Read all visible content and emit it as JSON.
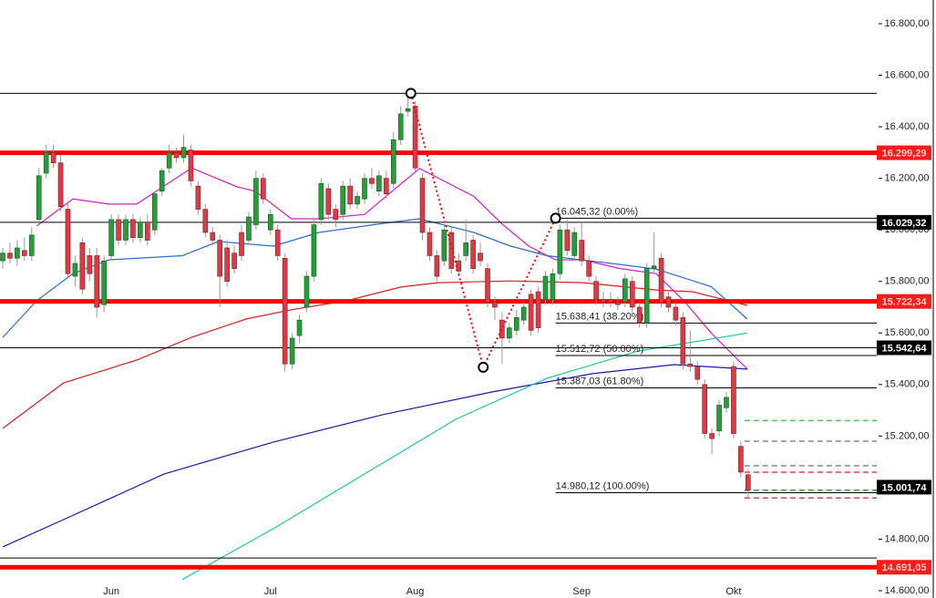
{
  "chart_data": {
    "type": "candlestick",
    "categories": [
      null,
      null,
      null,
      null,
      null,
      null,
      null,
      null,
      null,
      null,
      null,
      null,
      null,
      null,
      null,
      "Jun",
      null,
      null,
      null,
      null,
      null,
      null,
      null,
      null,
      null,
      null,
      null,
      null,
      null,
      null,
      null,
      null,
      null,
      null,
      null,
      null,
      null,
      "Jul",
      null,
      null,
      null,
      null,
      null,
      null,
      null,
      null,
      null,
      null,
      null,
      null,
      null,
      null,
      null,
      null,
      null,
      null,
      null,
      "Aug",
      null,
      null,
      null,
      null,
      null,
      null,
      null,
      null,
      null,
      null,
      null,
      null,
      null,
      null,
      null,
      null,
      null,
      null,
      null,
      null,
      null,
      null,
      "Sep",
      null,
      null,
      null,
      null,
      null,
      null,
      null,
      null,
      null,
      null,
      null,
      null,
      null,
      null,
      null,
      null,
      null,
      null,
      null,
      null,
      "Okt",
      null,
      null
    ],
    "ohlc": [
      [
        15880,
        15930,
        15850,
        15910
      ],
      [
        15910,
        15950,
        15870,
        15890
      ],
      [
        15890,
        15960,
        15860,
        15930
      ],
      [
        15920,
        15970,
        15880,
        15900
      ],
      [
        15900,
        16010,
        15880,
        15980
      ],
      [
        16040,
        16240,
        16020,
        16210
      ],
      [
        16220,
        16330,
        16200,
        16300
      ],
      [
        16300,
        16330,
        16240,
        16260
      ],
      [
        16260,
        16290,
        16070,
        16090
      ],
      [
        16080,
        16100,
        15810,
        15830
      ],
      [
        15820,
        15900,
        15780,
        15870
      ],
      [
        15950,
        15970,
        15750,
        15770
      ],
      [
        15900,
        15930,
        15800,
        15830
      ],
      [
        15900,
        15930,
        15660,
        15700
      ],
      [
        15710,
        15900,
        15680,
        15880
      ],
      [
        15900,
        16060,
        15880,
        16040
      ],
      [
        16040,
        16060,
        15940,
        15960
      ],
      [
        15960,
        16060,
        15940,
        16040
      ],
      [
        16040,
        16060,
        15950,
        15970
      ],
      [
        15970,
        16050,
        15950,
        16030
      ],
      [
        16030,
        16060,
        15940,
        15960
      ],
      [
        16000,
        16150,
        15980,
        16140
      ],
      [
        16150,
        16240,
        16130,
        16230
      ],
      [
        16240,
        16330,
        16220,
        16300
      ],
      [
        16300,
        16320,
        16260,
        16280
      ],
      [
        16280,
        16370,
        16260,
        16320
      ],
      [
        16310,
        16330,
        16170,
        16190
      ],
      [
        16170,
        16190,
        16060,
        16080
      ],
      [
        16080,
        16100,
        15970,
        15990
      ],
      [
        15990,
        16010,
        15940,
        15960
      ],
      [
        15960,
        15980,
        15700,
        15820
      ],
      [
        15930,
        15960,
        15780,
        15800
      ],
      [
        15910,
        15940,
        15830,
        15850
      ],
      [
        15990,
        16020,
        15880,
        15900
      ],
      [
        15960,
        16070,
        15940,
        16050
      ],
      [
        16020,
        16230,
        16000,
        16200
      ],
      [
        16200,
        16220,
        16100,
        16120
      ],
      [
        16000,
        16080,
        15980,
        16060
      ],
      [
        16000,
        16020,
        15880,
        15900
      ],
      [
        15890,
        15910,
        15450,
        15480
      ],
      [
        15480,
        15600,
        15460,
        15580
      ],
      [
        15590,
        15670,
        15560,
        15650
      ],
      [
        15700,
        15840,
        15680,
        15820
      ],
      [
        15820,
        16040,
        15800,
        16020
      ],
      [
        16040,
        16200,
        16020,
        16180
      ],
      [
        16160,
        16180,
        16040,
        16060
      ],
      [
        16080,
        16100,
        16010,
        16040
      ],
      [
        16060,
        16190,
        16040,
        16170
      ],
      [
        16170,
        16200,
        16080,
        16100
      ],
      [
        16100,
        16150,
        16080,
        16130
      ],
      [
        16120,
        16220,
        16100,
        16200
      ],
      [
        16200,
        16240,
        16160,
        16180
      ],
      [
        16150,
        16230,
        16130,
        16210
      ],
      [
        16200,
        16230,
        16120,
        16140
      ],
      [
        16180,
        16380,
        16160,
        16350
      ],
      [
        16350,
        16480,
        16330,
        16450
      ],
      [
        16460,
        16530,
        16440,
        16470
      ],
      [
        16480,
        16500,
        16220,
        16240
      ],
      [
        16200,
        16220,
        15960,
        15990
      ],
      [
        15990,
        16010,
        15880,
        15900
      ],
      [
        15900,
        15920,
        15800,
        15820
      ],
      [
        15880,
        16020,
        15860,
        16000
      ],
      [
        15990,
        16010,
        15830,
        15850
      ],
      [
        15880,
        15910,
        15820,
        15840
      ],
      [
        15900,
        16040,
        15880,
        15950
      ],
      [
        15960,
        15980,
        15830,
        15850
      ],
      [
        15910,
        15950,
        15860,
        15880
      ],
      [
        15850,
        15870,
        15700,
        15720
      ],
      [
        15720,
        15740,
        15650,
        15700
      ],
      [
        15650,
        15680,
        15480,
        15580
      ],
      [
        15580,
        15640,
        15560,
        15620
      ],
      [
        15610,
        15690,
        15590,
        15660
      ],
      [
        15650,
        15720,
        15630,
        15700
      ],
      [
        15750,
        15770,
        15590,
        15610
      ],
      [
        15760,
        15780,
        15600,
        15620
      ],
      [
        15730,
        15840,
        15710,
        15820
      ],
      [
        15730,
        15850,
        15710,
        15830
      ],
      [
        15830,
        16020,
        15810,
        16000
      ],
      [
        16000,
        16040,
        15900,
        15920
      ],
      [
        15900,
        16010,
        15880,
        15990
      ],
      [
        15960,
        16030,
        15860,
        15880
      ],
      [
        15880,
        15900,
        15800,
        15820
      ],
      [
        15800,
        15820,
        15710,
        15730
      ],
      [
        15730,
        15760,
        15700,
        15720
      ],
      [
        15730,
        15760,
        15700,
        15720
      ],
      [
        15720,
        15740,
        15690,
        15710
      ],
      [
        15720,
        15830,
        15700,
        15810
      ],
      [
        15800,
        15820,
        15680,
        15700
      ],
      [
        15700,
        15720,
        15620,
        15640
      ],
      [
        15640,
        15870,
        15620,
        15850
      ],
      [
        15850,
        15990,
        15830,
        15860
      ],
      [
        15890,
        15910,
        15700,
        15720
      ],
      [
        15740,
        15760,
        15680,
        15700
      ],
      [
        15700,
        15720,
        15630,
        15650
      ],
      [
        15660,
        15680,
        15460,
        15480
      ],
      [
        15480,
        15610,
        15450,
        15470
      ],
      [
        15470,
        15490,
        15400,
        15420
      ],
      [
        15400,
        15420,
        15190,
        15210
      ],
      [
        15210,
        15230,
        15130,
        15190
      ],
      [
        15220,
        15340,
        15200,
        15320
      ],
      [
        15310,
        15370,
        15290,
        15350
      ],
      [
        15470,
        15490,
        15190,
        15210
      ],
      [
        15160,
        15180,
        15040,
        15060
      ],
      [
        15050,
        15070,
        14960,
        14990
      ]
    ],
    "up_color": "#2a9a3a",
    "down_color": "#dc3a44",
    "ylim": [
      14600,
      16800
    ],
    "yticks": [
      {
        "value": 14600,
        "label": "14.600,00"
      },
      {
        "value": 14800,
        "label": "14.800,00"
      },
      {
        "value": 15000,
        "label": "15.000,00"
      },
      {
        "value": 15200,
        "label": "15.200,00"
      },
      {
        "value": 15400,
        "label": "15.400,00"
      },
      {
        "value": 15600,
        "label": "15.600,00"
      },
      {
        "value": 15800,
        "label": "15.800,00"
      },
      {
        "value": 16000,
        "label": "16.000,00"
      },
      {
        "value": 16200,
        "label": "16.200,00"
      },
      {
        "value": 16400,
        "label": "16.400,00"
      },
      {
        "value": 16600,
        "label": "16.600,00"
      },
      {
        "value": 16800,
        "label": "16.800,00"
      }
    ],
    "moving_averages": [
      {
        "color": "#d020c8",
        "x": [
          4.7,
          9.7,
          14.7,
          18.5,
          26.1,
          32.4,
          34.9,
          39.9,
          43.7,
          50,
          53.8,
          57.6,
          61.3,
          65.1,
          68.9,
          72.7,
          76.4,
          80.2,
          85.3,
          90.3,
          94.1,
          97.9,
          102.9
        ],
        "values": [
          16015,
          16120,
          16100,
          16100,
          16240,
          16167,
          16150,
          16043,
          16043,
          16060,
          16150,
          16238,
          16185,
          16130,
          16025,
          15937,
          15884,
          15884,
          15850,
          15830,
          15725,
          15600,
          15460
        ]
      },
      {
        "color": "#2a6fd0",
        "x": [
          0,
          4.7,
          9.7,
          14.7,
          24.8,
          29.8,
          37.4,
          43.7,
          52.5,
          57.6,
          65.1,
          70.2,
          75.2,
          85.3,
          90.3,
          97.9,
          102.9
        ],
        "values": [
          15583,
          15725,
          15830,
          15884,
          15900,
          15955,
          15937,
          15990,
          16025,
          16043,
          15990,
          15937,
          15900,
          15866,
          15848,
          15780,
          15654
        ]
      },
      {
        "color": "#d42020",
        "x": [
          0,
          8.4,
          18.5,
          26.1,
          33.6,
          39.9,
          47.5,
          55,
          60.1,
          70.2,
          80.2,
          90.3,
          95.3,
          102.9
        ],
        "values": [
          15230,
          15406,
          15495,
          15583,
          15654,
          15690,
          15725,
          15778,
          15795,
          15802,
          15795,
          15767,
          15760,
          15707
        ]
      },
      {
        "color": "#1a1aa8",
        "x": [
          0,
          8.4,
          22.3,
          37.4,
          52.5,
          67.6,
          81.5,
          92.8,
          102.9
        ],
        "values": [
          14770,
          14876,
          15053,
          15177,
          15283,
          15371,
          15442,
          15477,
          15460
        ]
      },
      {
        "color": "#1ec8a0",
        "x": [
          24.8,
          37.4,
          50,
          62.6,
          75.2,
          87.8,
          102.9
        ],
        "values": [
          14643,
          14841,
          15053,
          15265,
          15424,
          15530,
          15600
        ]
      }
    ],
    "levels": [
      {
        "value": 16530,
        "color": "#000000",
        "width": 1
      },
      {
        "value": 16299.29,
        "color": "#ff0000",
        "width": 5,
        "label": "16.299,29"
      },
      {
        "value": 16029.32,
        "color": "#000000",
        "width": 1,
        "label": "16.029,32"
      },
      {
        "value": 15722.34,
        "color": "#ff0000",
        "width": 5,
        "label": "15.722,34"
      },
      {
        "value": 15542.64,
        "color": "#000000",
        "width": 1,
        "label": "15.542,64"
      },
      {
        "value": 15001.74,
        "color": "#000000",
        "width": 0,
        "label": "15.001,74"
      },
      {
        "value": 14727,
        "color": "#000000",
        "width": 1
      },
      {
        "value": 14691.05,
        "color": "#ff0000",
        "width": 5,
        "label": "14.691,05"
      }
    ],
    "fibonacci": [
      {
        "value": 16045.32,
        "label": "16.045,32 (0.00%)"
      },
      {
        "value": 15638.41,
        "label": "15.638,41 (38.20%)"
      },
      {
        "value": 15512.72,
        "label": "15.512,72 (50.00%)"
      },
      {
        "value": 15387.03,
        "label": "15.387,03 (61.80%)"
      },
      {
        "value": 14980.12,
        "label": "14.980,12 (100.00%)"
      }
    ],
    "swing": {
      "color": "#e01010",
      "x": [
        56.4,
        66.4,
        76.4
      ],
      "values": [
        16530,
        15467,
        16045.32
      ]
    },
    "dashed_levels": [
      {
        "value": 15260,
        "color": "#50c050"
      },
      {
        "value": 15180,
        "color": "#888888"
      },
      {
        "value": 15085,
        "color": "#888888"
      },
      {
        "value": 15060,
        "color": "#e04050"
      },
      {
        "value": 14990,
        "color": "#30a030"
      },
      {
        "value": 14960,
        "color": "#e04050"
      }
    ]
  }
}
